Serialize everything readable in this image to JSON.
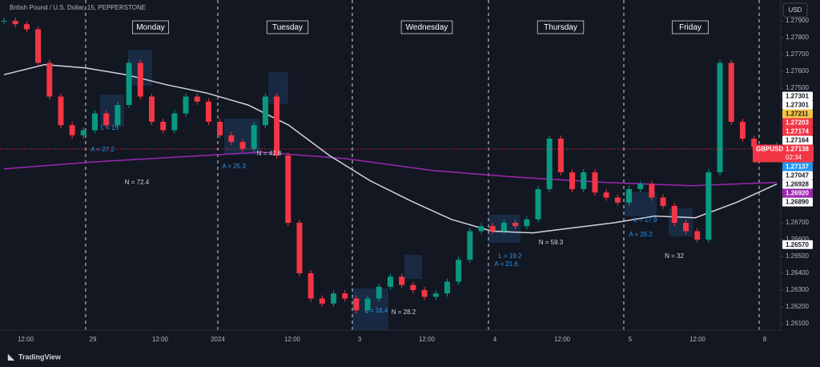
{
  "header": {
    "symbol_title": "British Pound / U.S. Dollar, 15, PEPPERSTONE",
    "currency": "USD"
  },
  "day_labels": [
    "Monday",
    "Tuesday",
    "Wednesday",
    "Thursday",
    "Friday"
  ],
  "time_axis": [
    "12:00",
    "29",
    "12:00",
    "2024",
    "12:00",
    "3",
    "12:00",
    "4",
    "12:00",
    "5",
    "12:00",
    "8"
  ],
  "price_axis": {
    "ticks": [
      {
        "value": 1.279,
        "label": "1.27900"
      },
      {
        "value": 1.278,
        "label": "1.27800"
      },
      {
        "value": 1.277,
        "label": "1.27700"
      },
      {
        "value": 1.276,
        "label": "1.27600"
      },
      {
        "value": 1.275,
        "label": "1.27500"
      },
      {
        "value": 1.267,
        "label": "1.26700"
      },
      {
        "value": 1.266,
        "label": "1.26600"
      },
      {
        "value": 1.265,
        "label": "1.26500"
      },
      {
        "value": 1.264,
        "label": "1.26400"
      },
      {
        "value": 1.263,
        "label": "1.26300"
      },
      {
        "value": 1.262,
        "label": "1.26200"
      },
      {
        "value": 1.261,
        "label": "1.26100"
      }
    ],
    "badges": [
      {
        "value": 1.27301,
        "label": "1.27301",
        "color": "#ffffff"
      },
      {
        "value": 1.27301,
        "label": "1.27301",
        "color": "#ffffff"
      },
      {
        "value": 1.27211,
        "label": "1.27211",
        "color": "#f5c542"
      },
      {
        "value": 1.27203,
        "label": "1.27203",
        "color": "#f23645"
      },
      {
        "value": 1.27174,
        "label": "1.27174",
        "color": "#f23645"
      },
      {
        "value": 1.27164,
        "label": "1.27164",
        "color": "#ffffff"
      },
      {
        "value": 1.27137,
        "label": "1.27137",
        "color": "#2196f3"
      },
      {
        "value": 1.27047,
        "label": "1.27047",
        "color": "#ffffff"
      },
      {
        "value": 1.26928,
        "label": "1.26928",
        "color": "#ffffff"
      },
      {
        "value": 1.2692,
        "label": "1.26920",
        "color": "#9c27b0"
      },
      {
        "value": 1.2689,
        "label": "1.26890",
        "color": "#ffffff"
      },
      {
        "value": 1.2657,
        "label": "1.26570",
        "color": "#ffffff"
      }
    ]
  },
  "current": {
    "symbol": "GBPUSD",
    "value": 1.27138,
    "label": "1.27138",
    "countdown": "02:34"
  },
  "annotations": [
    {
      "text": "L = 15",
      "color": "#2196f3"
    },
    {
      "text": "A = 27.2",
      "color": "#2196f3"
    },
    {
      "text": "N = 72.4",
      "color": "#d1d4dc"
    },
    {
      "text": "A = 25.3",
      "color": "#2196f3"
    },
    {
      "text": "N = 42.8",
      "color": "#d1d4dc"
    },
    {
      "text": "L = 16.4",
      "color": "#2196f3"
    },
    {
      "text": "N = 28.2",
      "color": "#d1d4dc"
    },
    {
      "text": "L = 19.2",
      "color": "#2196f3"
    },
    {
      "text": "A = 21.6",
      "color": "#2196f3"
    },
    {
      "text": "N = 59.3",
      "color": "#d1d4dc"
    },
    {
      "text": "L = 17.9",
      "color": "#2196f3"
    },
    {
      "text": "A = 26.2",
      "color": "#2196f3"
    },
    {
      "text": "N = 32",
      "color": "#d1d4dc"
    }
  ],
  "price": {
    "closes": [
      1.279,
      1.2788,
      1.2785,
      1.2765,
      1.2745,
      1.2728,
      1.2722,
      1.2725,
      1.2735,
      1.2728,
      1.274,
      1.2765,
      1.2745,
      1.273,
      1.2725,
      1.2735,
      1.2745,
      1.2742,
      1.273,
      1.2722,
      1.2718,
      1.2714,
      1.2728,
      1.2745,
      1.271,
      1.267,
      1.264,
      1.2625,
      1.2622,
      1.2628,
      1.2625,
      1.2618,
      1.2625,
      1.2632,
      1.2638,
      1.2633,
      1.263,
      1.2626,
      1.2628,
      1.2635,
      1.2648,
      1.2665,
      1.2668,
      1.2665,
      1.267,
      1.2668,
      1.2672,
      1.269,
      1.272,
      1.27,
      1.269,
      1.27,
      1.2688,
      1.2685,
      1.2682,
      1.269,
      1.2693,
      1.2685,
      1.268,
      1.267,
      1.2665,
      1.266,
      1.27,
      1.2765,
      1.273,
      1.272,
      1.2715,
      1.2714,
      1.2716
    ],
    "up_color": "#089981",
    "down_color": "#f23645"
  },
  "ma_slow": {
    "values": [
      1.2758,
      1.2764,
      1.2762,
      1.2758,
      1.2752,
      1.2747,
      1.274,
      1.2728,
      1.271,
      1.2695,
      1.2683,
      1.2672,
      1.2665,
      1.2664,
      1.2667,
      1.267,
      1.2674,
      1.2673,
      1.2682,
      1.2693
    ],
    "color": "#d1d4dc"
  },
  "ma_long": {
    "values": [
      1.2702,
      1.2706,
      1.2709,
      1.2712,
      1.2708,
      1.2701,
      1.2697,
      1.2694,
      1.2692,
      1.2694
    ],
    "color": "#9c27b0"
  },
  "footer": "TradingView"
}
